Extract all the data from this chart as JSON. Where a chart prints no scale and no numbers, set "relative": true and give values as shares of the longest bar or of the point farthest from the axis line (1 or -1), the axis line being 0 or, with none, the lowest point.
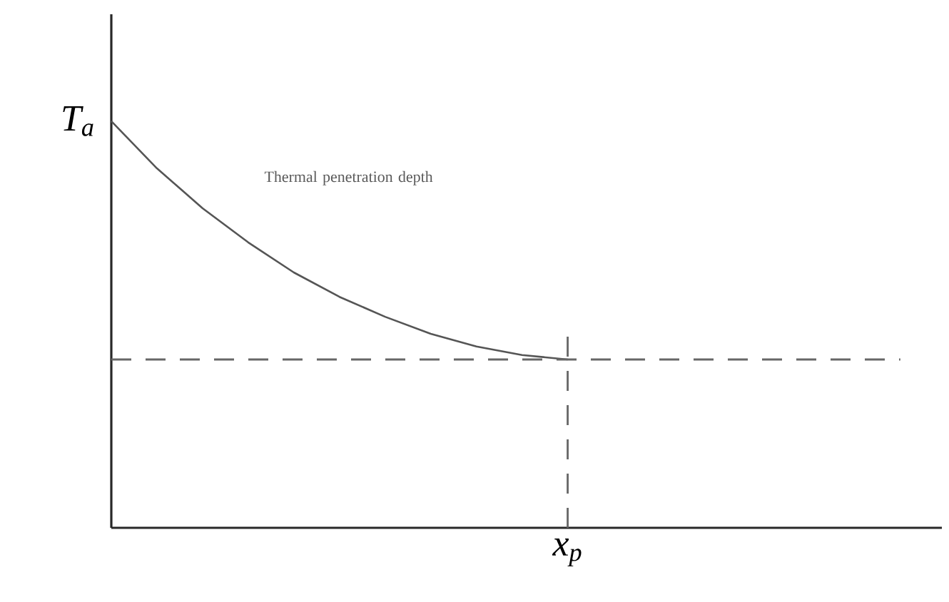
{
  "chart_data": {
    "type": "line",
    "relative": true,
    "categories": [
      null,
      null,
      null,
      null,
      null,
      null,
      null,
      null,
      null,
      null,
      null,
      null,
      null,
      null,
      null,
      null,
      null,
      null,
      null
    ],
    "series": [
      {
        "color": "#555555",
        "values": [
          1.0,
          0.884,
          0.786,
          0.702,
          0.628,
          0.568,
          0.519,
          0.477,
          0.446,
          0.425,
          0.414,
          null,
          null,
          null,
          null,
          null,
          null,
          null,
          null
        ]
      }
    ],
    "ref_lines": [
      {
        "axis": "y",
        "value": 0.414,
        "color": "#666666",
        "line_style": "dashed"
      }
    ],
    "annotations": [
      "T$_{a}$",
      "Thermal penetration depth",
      "x$_{p}$"
    ],
    "marker": "none",
    "line_style": "solid"
  }
}
